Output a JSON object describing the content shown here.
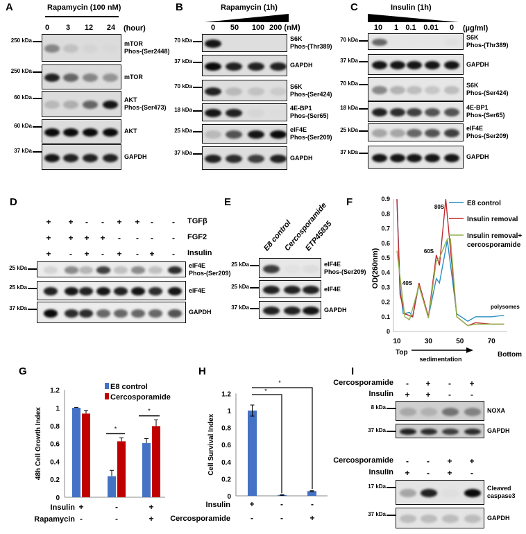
{
  "panels": {
    "A": {
      "letter": "A",
      "title": "Rapamycin (100 nM)",
      "lanes": [
        "0",
        "3",
        "12",
        "24"
      ],
      "unit": "(hour)",
      "blots": [
        {
          "kda": "250 kDa",
          "label": [
            "mTOR",
            "Phos-(Ser2448)"
          ],
          "bands": [
            0.6,
            0.35,
            0.2,
            0.15
          ]
        },
        {
          "kda": "250 kDa",
          "label": [
            "mTOR"
          ],
          "bands": [
            0.9,
            0.7,
            0.6,
            0.55
          ]
        },
        {
          "kda": "60 kDa",
          "label": [
            "AKT",
            "Phos-(Ser473)"
          ],
          "bands": [
            0.4,
            0.45,
            0.7,
            0.95
          ]
        },
        {
          "kda": "60 kDa",
          "label": [
            "AKT"
          ],
          "bands": [
            1,
            1,
            1,
            1
          ]
        },
        {
          "kda": "37 kDa",
          "label": [
            "GAPDH"
          ],
          "bands": [
            0.95,
            0.9,
            0.9,
            0.9
          ]
        }
      ]
    },
    "B": {
      "letter": "B",
      "title": "Rapamycin (1h)",
      "lanes": [
        "0",
        "50",
        "100",
        "200 (nM)"
      ],
      "blots": [
        {
          "kda": "70 kDa",
          "label": [
            "S6K",
            "Phos-(Thr389)"
          ],
          "bands": [
            0.95,
            0,
            0,
            0
          ]
        },
        {
          "kda": "37 kDa",
          "label": [
            "GAPDH"
          ],
          "bands": [
            1,
            0.9,
            0.9,
            0.9
          ]
        },
        {
          "kda": "70 kDa",
          "label": [
            "S6K",
            "Phos-(Ser424)"
          ],
          "bands": [
            0.9,
            0.4,
            0.35,
            0.3
          ]
        },
        {
          "kda": "18 kDa",
          "label": [
            "4E-BP1",
            "Phos-(Ser65)"
          ],
          "bands": [
            0.95,
            0.9,
            0.2,
            0.1
          ]
        },
        {
          "kda": "25 kDa",
          "label": [
            "eIF4E",
            "Phos-(Ser209)"
          ],
          "bands": [
            0.4,
            0.75,
            0.95,
            1
          ]
        },
        {
          "kda": "37 kDa",
          "label": [
            "GAPDH"
          ],
          "bands": [
            0.9,
            0.85,
            0.8,
            0.9
          ]
        }
      ]
    },
    "C": {
      "letter": "C",
      "title": "Insulin (1h)",
      "lanes": [
        "10",
        "1",
        "0.1",
        "0.01",
        "0"
      ],
      "unit": "(µg/ml)",
      "blots": [
        {
          "kda": "70 kDa",
          "label": [
            "S6K",
            "Phos-(Thr389)"
          ],
          "bands": [
            0.7,
            0.05,
            0.03,
            0.03,
            0.15
          ]
        },
        {
          "kda": "37 kDa",
          "label": [
            "GAPDH"
          ],
          "bands": [
            0.95,
            0.95,
            0.95,
            0.95,
            0.95
          ]
        },
        {
          "kda": "70 kDa",
          "label": [
            "S6K",
            "Phos-(Ser424)"
          ],
          "bands": [
            0.6,
            0.45,
            0.4,
            0.35,
            0.4
          ]
        },
        {
          "kda": "18 kDa",
          "label": [
            "4E-BP1",
            "Phos-(Ser65)"
          ],
          "bands": [
            0.9,
            0.85,
            0.8,
            0.75,
            0.75
          ]
        },
        {
          "kda": "25 kDa",
          "label": [
            "eIF4E",
            "Phos-(Ser209)"
          ],
          "bands": [
            0.5,
            0.5,
            0.7,
            0.75,
            0.8
          ]
        },
        {
          "kda": "37 kDa",
          "label": [
            "GAPDH"
          ],
          "bands": [
            0.95,
            0.95,
            0.95,
            0.95,
            0.95
          ]
        }
      ]
    },
    "D": {
      "letter": "D",
      "conditions": [
        {
          "name": "TGFβ",
          "signs": [
            "+",
            "+",
            "-",
            "-",
            "+",
            "+",
            "-",
            "-"
          ]
        },
        {
          "name": "FGF2",
          "signs": [
            "+",
            "+",
            "+",
            "+",
            "-",
            "-",
            "-",
            "-"
          ]
        },
        {
          "name": "Insulin",
          "signs": [
            "+",
            "-",
            "+",
            "-",
            "+",
            "-",
            "+",
            "-"
          ]
        }
      ],
      "blots": [
        {
          "kda": "25 kDa",
          "label": [
            "eIF4E",
            "Phos-(Ser209)"
          ],
          "bands": [
            0.3,
            0.6,
            0.45,
            0.8,
            0.4,
            0.6,
            0.4,
            0.85
          ]
        },
        {
          "kda": "25 kDa",
          "label": [
            "eIF4E"
          ],
          "bands": [
            0.9,
            0.95,
            0.9,
            0.95,
            0.9,
            0.95,
            0.85,
            0.95
          ]
        },
        {
          "kda": "37 kDa",
          "label": [
            "GAPDH"
          ],
          "bands": [
            1,
            0.85,
            0.85,
            0.7,
            0.7,
            0.7,
            0.7,
            0.75
          ]
        }
      ]
    },
    "E": {
      "letter": "E",
      "lanes": [
        "E8 control",
        "Cercosporamide",
        "ETP45835"
      ],
      "blots": [
        {
          "kda": "25 kDa",
          "label": [
            "eIF4E",
            "Phos-(Ser209)"
          ],
          "bands": [
            0.8,
            0.15,
            0.2
          ]
        },
        {
          "kda": "25 kDa",
          "label": [
            "eIF4E"
          ],
          "bands": [
            0.9,
            0.9,
            0.9
          ]
        },
        {
          "kda": "37 kDa",
          "label": [
            "GAPDH"
          ],
          "bands": [
            0.9,
            0.9,
            0.95
          ]
        }
      ]
    },
    "F": {
      "letter": "F"
    },
    "G": {
      "letter": "G"
    },
    "H": {
      "letter": "H"
    },
    "I": {
      "letter": "I",
      "top": {
        "conditions": [
          {
            "name": "Cercosporamide",
            "signs": [
              "-",
              "+",
              "-",
              "+"
            ]
          },
          {
            "name": "Insulin",
            "signs": [
              "+",
              "+",
              "-",
              "-"
            ]
          }
        ],
        "blots": [
          {
            "kda": "8 kDa",
            "label": [
              "NOXA"
            ],
            "bands": [
              0.45,
              0.4,
              0.65,
              0.6
            ]
          },
          {
            "kda": "37 kDa",
            "label": [
              "GAPDH"
            ],
            "bands": [
              0.9,
              0.85,
              0.8,
              0.85
            ]
          }
        ]
      },
      "bottom": {
        "conditions": [
          {
            "name": "Cercosporamide",
            "signs": [
              "-",
              "-",
              "+",
              "+"
            ]
          },
          {
            "name": "Insulin",
            "signs": [
              "+",
              "-",
              "+",
              "-"
            ]
          }
        ],
        "blots": [
          {
            "kda": "17 kDa",
            "label": [
              "Cleaved",
              "caspase3"
            ],
            "bands": [
              0.5,
              0.9,
              0.15,
              1
            ]
          },
          {
            "kda": "37 kDa",
            "label": [
              "GAPDH"
            ],
            "bands": [
              0.4,
              0.4,
              0.4,
              0.4
            ]
          }
        ]
      }
    }
  },
  "chart_data": [
    {
      "panel": "F",
      "type": "line",
      "ylabel": "OD(260nm)",
      "xlabel": "sedimentation",
      "x_ends": [
        "Top",
        "Bottom"
      ],
      "xticks": [
        10,
        30,
        50,
        70
      ],
      "yticks": [
        0,
        0.1,
        0.2,
        0.3,
        0.4,
        0.5,
        0.6,
        0.7,
        0.8,
        0.9
      ],
      "xlim": [
        10,
        80
      ],
      "ylim": [
        0,
        0.9
      ],
      "grid": false,
      "legend": "top-right",
      "annotations": [
        "80S",
        "60S",
        "40S",
        "polysomes"
      ],
      "series": [
        {
          "name": "E8 control",
          "color": "#2a8fc0",
          "x": [
            10,
            12,
            14,
            18,
            20,
            24,
            30,
            35,
            37,
            42,
            48,
            55,
            60,
            70,
            78
          ],
          "y": [
            0.9,
            0.3,
            0.12,
            0.13,
            0.1,
            0.32,
            0.1,
            0.36,
            0.33,
            0.62,
            0.12,
            0.07,
            0.1,
            0.1,
            0.11
          ]
        },
        {
          "name": "Insulin removal",
          "color": "#c0282d",
          "x": [
            10,
            12,
            15,
            20,
            24,
            30,
            35,
            37,
            41,
            48,
            55,
            60,
            70,
            78
          ],
          "y": [
            0.9,
            0.25,
            0.12,
            0.1,
            0.33,
            0.1,
            0.52,
            0.45,
            0.9,
            0.1,
            0.04,
            0.06,
            0.05,
            0.05
          ]
        },
        {
          "name": "Insulin removal+ cercosporamide",
          "color": "#8fb24a",
          "x": [
            10,
            15,
            18,
            24,
            30,
            35,
            37,
            42,
            44,
            48,
            55,
            60,
            70,
            78
          ],
          "y": [
            0.55,
            0.1,
            0.08,
            0.31,
            0.09,
            0.48,
            0.5,
            0.63,
            0.63,
            0.1,
            0.04,
            0.05,
            0.05,
            0.05
          ]
        }
      ]
    },
    {
      "panel": "G",
      "type": "bar",
      "ylabel": "48h Cell Growth  Index",
      "ylim": [
        0,
        1.2
      ],
      "yticks": [
        "0",
        "0.2",
        "0.4",
        "0.6",
        "0.8",
        "1",
        "1.2"
      ],
      "legend": "top-right",
      "conditions": [
        {
          "name": "Insulin",
          "signs": [
            "+",
            "-",
            "+"
          ]
        },
        {
          "name": "Rapamycin",
          "signs": [
            "-",
            "-",
            "+"
          ]
        }
      ],
      "significance": [
        "*",
        "*"
      ],
      "series": [
        {
          "name": "E8 control",
          "color": "#4472c4",
          "values": [
            1.0,
            0.235,
            0.605
          ],
          "errors": [
            0.005,
            0.065,
            0.05
          ]
        },
        {
          "name": "Cercosporamide",
          "color": "#c00000",
          "values": [
            0.935,
            0.625,
            0.795
          ],
          "errors": [
            0.035,
            0.04,
            0.07
          ]
        }
      ]
    },
    {
      "panel": "H",
      "type": "bar",
      "ylabel": "Cell Survival Index",
      "ylim": [
        0,
        1.2
      ],
      "yticks": [
        "0",
        "0.2",
        "0.4",
        "0.6",
        "0.8",
        "1",
        "1.2"
      ],
      "conditions": [
        {
          "name": "Insulin",
          "signs": [
            "+",
            "-",
            "-"
          ]
        },
        {
          "name": "Cercosporamide",
          "signs": [
            "-",
            "-",
            "+"
          ]
        }
      ],
      "significance": [
        "*",
        "*"
      ],
      "series": [
        {
          "color": "#4472c4",
          "values": [
            1.0,
            0.01,
            0.055
          ],
          "errors": [
            0.065,
            0.005,
            0.005
          ]
        }
      ]
    }
  ]
}
